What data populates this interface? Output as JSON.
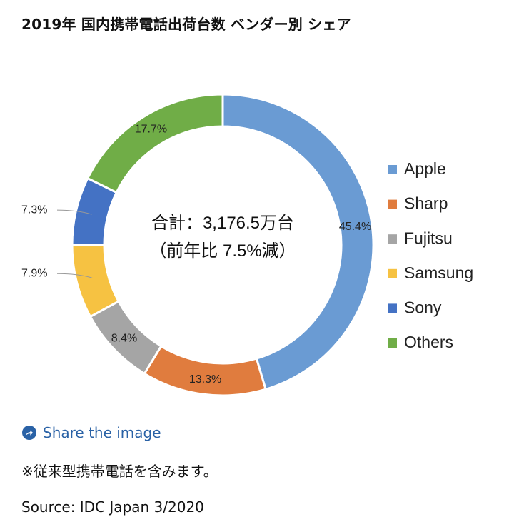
{
  "page": {
    "title": "2019年 国内携帯電話出荷台数 ベンダー別 シェア",
    "share_label": "Share the image",
    "note": "※従来型携帯電話を含みます。",
    "source": "Source: IDC Japan 3/2020"
  },
  "icons": {
    "share": "share-arrow-circle-icon"
  },
  "colors": {
    "link": "#2a62a6",
    "share_icon_bg": "#2a62a6"
  },
  "chart_data": {
    "type": "pie",
    "style": "donut",
    "title": "2019年 国内携帯電話出荷台数 ベンダー別 シェア",
    "center_label_line1": "合計：3,176.5万台",
    "center_label_line2": "（前年比 7.5%減）",
    "legend_position": "right",
    "categories": [
      "Apple",
      "Sharp",
      "Fujitsu",
      "Samsung",
      "Sony",
      "Others"
    ],
    "values": [
      45.4,
      13.3,
      8.4,
      7.9,
      7.3,
      17.7
    ],
    "labels": [
      "45.4%",
      "13.3%",
      "8.4%",
      "7.9%",
      "7.3%",
      "17.7%"
    ],
    "unit": "%",
    "colors": [
      "#6a9bd3",
      "#e07c3e",
      "#a5a5a5",
      "#f6c242",
      "#4472c4",
      "#70ad47"
    ]
  }
}
